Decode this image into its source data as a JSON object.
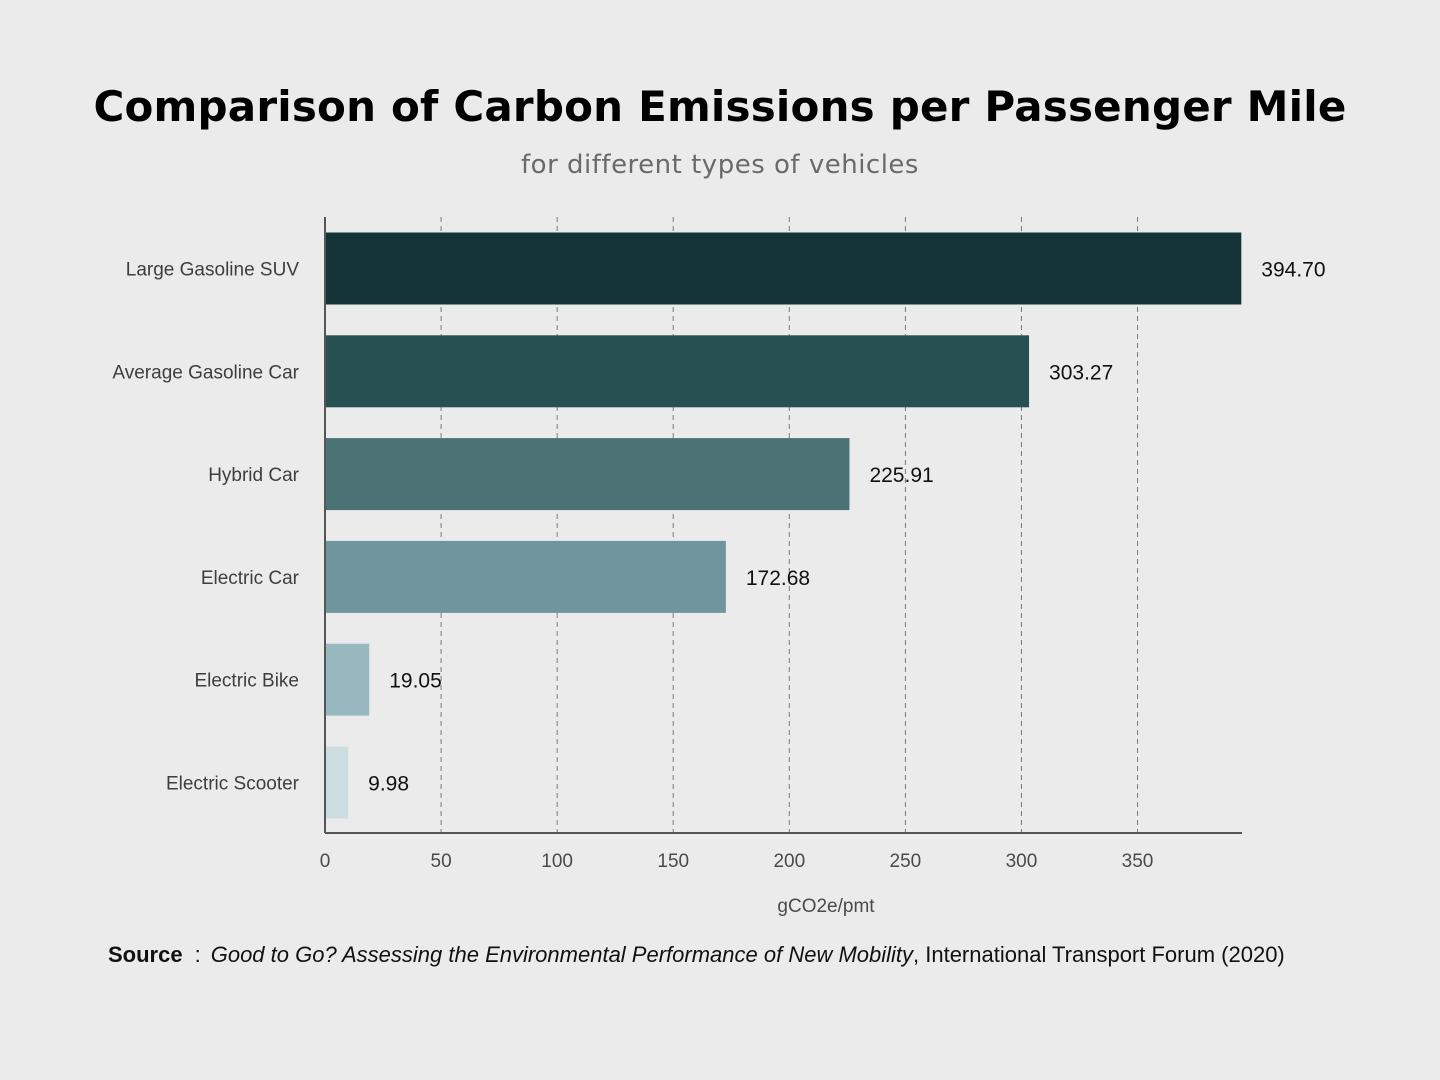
{
  "header": {
    "title": "Comparison of Carbon Emissions per Passenger Mile",
    "subtitle": "for different types of vehicles"
  },
  "chart_data": {
    "type": "bar",
    "orientation": "horizontal",
    "categories": [
      "Large Gasoline SUV",
      "Average Gasoline Car",
      "Hybrid Car",
      "Electric Car",
      "Electric Bike",
      "Electric Scooter"
    ],
    "values": [
      394.7,
      303.27,
      225.91,
      172.68,
      19.05,
      9.98
    ],
    "value_labels": [
      "394.70",
      "303.27",
      "225.91",
      "172.68",
      "19.05",
      "9.98"
    ],
    "bar_colors": [
      "#143438",
      "#275053",
      "#4b7275",
      "#6f969e",
      "#98b8bf",
      "#cbdde1"
    ],
    "xlabel": "gCO2e/pmt",
    "ylabel": "",
    "xlim": [
      0,
      395
    ],
    "xticks": [
      0,
      50,
      100,
      150,
      200,
      250,
      300,
      350
    ],
    "grid": "vertical dashed"
  },
  "source": {
    "label": "Source",
    "separator": ":",
    "publication": "Good to Go? Assessing the Environmental Performance of New Mobility",
    "rest": ", International Transport Forum (2020)"
  }
}
